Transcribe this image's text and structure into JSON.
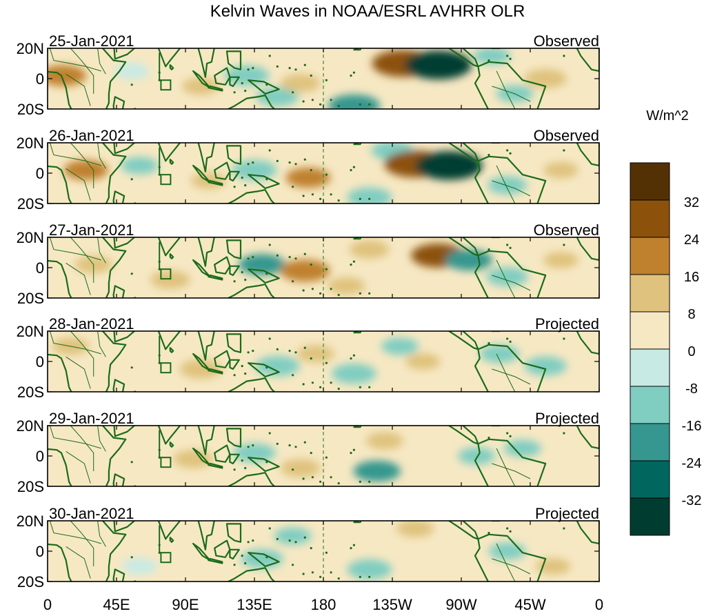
{
  "title": "Kelvin Waves in NOAA/ESRL AVHRR OLR",
  "panels": [
    {
      "date": "25-Jan-2021",
      "status": "Observed"
    },
    {
      "date": "26-Jan-2021",
      "status": "Observed"
    },
    {
      "date": "27-Jan-2021",
      "status": "Observed"
    },
    {
      "date": "28-Jan-2021",
      "status": "Projected"
    },
    {
      "date": "29-Jan-2021",
      "status": "Projected"
    },
    {
      "date": "30-Jan-2021",
      "status": "Projected"
    }
  ],
  "lat_labels": [
    "20N",
    "0",
    "20S"
  ],
  "lon_labels": [
    "0",
    "45E",
    "90E",
    "135E",
    "180",
    "135W",
    "90W",
    "45W",
    "0"
  ],
  "colorbar": {
    "units": "W/m^2",
    "tick_labels": [
      "32",
      "24",
      "16",
      "8",
      "0",
      "-8",
      "-16",
      "-24",
      "-32"
    ],
    "colors": [
      "#543005",
      "#8c510a",
      "#bf812d",
      "#dfc27d",
      "#f6e8c3",
      "#c7eae5",
      "#80cdc1",
      "#35978f",
      "#01665e",
      "#003c30"
    ]
  },
  "colors": {
    "coastline": "#1a6b1a",
    "dateline": "#3a8a3a"
  },
  "anomalies": [
    [
      {
        "lon": 10,
        "lat": 2,
        "v": 18
      },
      {
        "lon": 55,
        "lat": 5,
        "v": -8
      },
      {
        "lon": 100,
        "lat": -5,
        "v": 10
      },
      {
        "lon": 130,
        "lat": 2,
        "v": -16
      },
      {
        "lon": 150,
        "lat": -12,
        "v": -14
      },
      {
        "lon": 165,
        "lat": -3,
        "v": 12
      },
      {
        "lon": 200,
        "lat": -18,
        "v": -22
      },
      {
        "lon": 232,
        "lat": 10,
        "v": 30
      },
      {
        "lon": 255,
        "lat": 9,
        "v": -34
      },
      {
        "lon": 290,
        "lat": 15,
        "v": -10
      },
      {
        "lon": 325,
        "lat": 0,
        "v": 14
      },
      {
        "lon": 305,
        "lat": -10,
        "v": -10
      }
    ],
    [
      {
        "lon": 25,
        "lat": 2,
        "v": 16
      },
      {
        "lon": 60,
        "lat": 5,
        "v": -10
      },
      {
        "lon": 105,
        "lat": -5,
        "v": 8
      },
      {
        "lon": 135,
        "lat": 2,
        "v": -16
      },
      {
        "lon": 170,
        "lat": -3,
        "v": 16
      },
      {
        "lon": 210,
        "lat": -16,
        "v": -16
      },
      {
        "lon": 225,
        "lat": 15,
        "v": -14
      },
      {
        "lon": 240,
        "lat": 6,
        "v": 30
      },
      {
        "lon": 262,
        "lat": 5,
        "v": -34
      },
      {
        "lon": 300,
        "lat": -8,
        "v": -12
      },
      {
        "lon": 335,
        "lat": 2,
        "v": 8
      }
    ],
    [
      {
        "lon": 30,
        "lat": 2,
        "v": 10
      },
      {
        "lon": 80,
        "lat": -8,
        "v": 12
      },
      {
        "lon": 140,
        "lat": 2,
        "v": -18
      },
      {
        "lon": 168,
        "lat": -2,
        "v": 20
      },
      {
        "lon": 195,
        "lat": -12,
        "v": 10
      },
      {
        "lon": 210,
        "lat": 12,
        "v": 12
      },
      {
        "lon": 255,
        "lat": 8,
        "v": 24
      },
      {
        "lon": 275,
        "lat": 5,
        "v": -18
      },
      {
        "lon": 300,
        "lat": -6,
        "v": -14
      },
      {
        "lon": 335,
        "lat": 5,
        "v": 8
      }
    ],
    [
      {
        "lon": 15,
        "lat": 10,
        "v": 10
      },
      {
        "lon": 100,
        "lat": -5,
        "v": 14
      },
      {
        "lon": 150,
        "lat": -3,
        "v": -16
      },
      {
        "lon": 175,
        "lat": 5,
        "v": 10
      },
      {
        "lon": 200,
        "lat": -8,
        "v": -16
      },
      {
        "lon": 230,
        "lat": 10,
        "v": -10
      },
      {
        "lon": 245,
        "lat": 0,
        "v": 8
      },
      {
        "lon": 295,
        "lat": 5,
        "v": -12
      },
      {
        "lon": 325,
        "lat": -3,
        "v": -14
      }
    ],
    [
      {
        "lon": 95,
        "lat": -2,
        "v": 12
      },
      {
        "lon": 135,
        "lat": 2,
        "v": -14
      },
      {
        "lon": 165,
        "lat": -8,
        "v": 12
      },
      {
        "lon": 215,
        "lat": -10,
        "v": -18
      },
      {
        "lon": 220,
        "lat": 10,
        "v": 10
      },
      {
        "lon": 280,
        "lat": 0,
        "v": -10
      },
      {
        "lon": 310,
        "lat": 5,
        "v": -10
      }
    ],
    [
      {
        "lon": 60,
        "lat": -10,
        "v": -8
      },
      {
        "lon": 140,
        "lat": -5,
        "v": -14
      },
      {
        "lon": 160,
        "lat": 10,
        "v": -10
      },
      {
        "lon": 210,
        "lat": -12,
        "v": -16
      },
      {
        "lon": 240,
        "lat": 15,
        "v": 10
      },
      {
        "lon": 300,
        "lat": 0,
        "v": -10
      },
      {
        "lon": 330,
        "lat": -10,
        "v": 8
      }
    ]
  ]
}
